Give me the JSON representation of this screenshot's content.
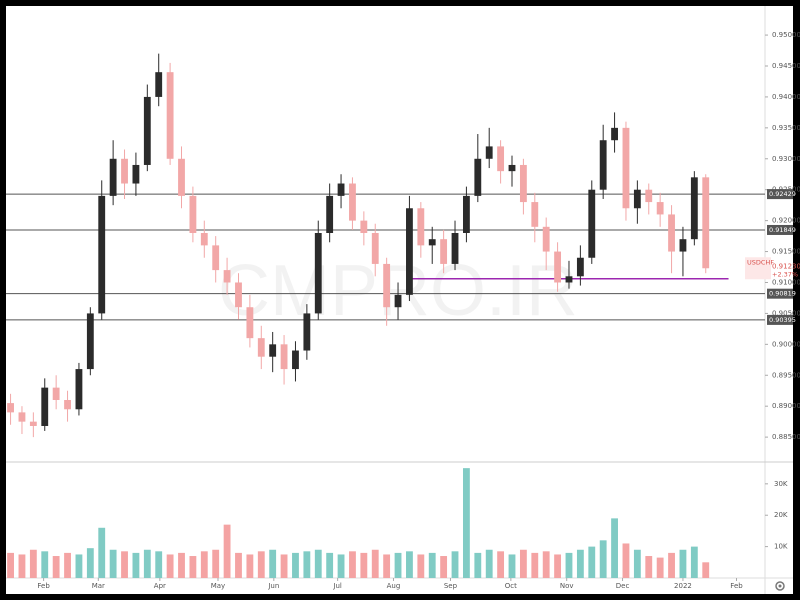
{
  "chart_data": {
    "type": "candlestick",
    "watermark": "CMPRO.IR",
    "symbol": "USDCHF",
    "last_price": {
      "value": 0.9123,
      "label": "0.91230"
    },
    "change": {
      "value": 2.37,
      "label": "+2.37%"
    },
    "up_color": "#2b2b2b",
    "down_color": "#f2a7a7",
    "xlim": [
      -0.4,
      66.2
    ],
    "xticks": [
      {
        "value": 2.9,
        "label": "Feb"
      },
      {
        "value": 7.7,
        "label": "Mar"
      },
      {
        "value": 13.1,
        "label": "Apr"
      },
      {
        "value": 18.2,
        "label": "May"
      },
      {
        "value": 23.1,
        "label": "Jun"
      },
      {
        "value": 28.7,
        "label": "Jul"
      },
      {
        "value": 33.6,
        "label": "Aug"
      },
      {
        "value": 38.6,
        "label": "Sep"
      },
      {
        "value": 43.9,
        "label": "Oct"
      },
      {
        "value": 48.8,
        "label": "Nov"
      },
      {
        "value": 53.7,
        "label": "Dec"
      },
      {
        "value": 59.0,
        "label": "2022"
      },
      {
        "value": 63.7,
        "label": "Feb"
      }
    ],
    "ylim": [
      0.8813,
      0.9547
    ],
    "yticks": [
      {
        "value": 0.885,
        "label": "0.88500"
      },
      {
        "value": 0.89,
        "label": "0.89000"
      },
      {
        "value": 0.895,
        "label": "0.89500"
      },
      {
        "value": 0.9,
        "label": "0.90000"
      },
      {
        "value": 0.905,
        "label": "0.90500"
      },
      {
        "value": 0.91,
        "label": "0.91000"
      },
      {
        "value": 0.915,
        "label": "0.91500"
      },
      {
        "value": 0.92,
        "label": "0.92000"
      },
      {
        "value": 0.925,
        "label": "0.92500"
      },
      {
        "value": 0.93,
        "label": "0.93000"
      },
      {
        "value": 0.935,
        "label": "0.93500"
      },
      {
        "value": 0.94,
        "label": "0.94000"
      },
      {
        "value": 0.945,
        "label": "0.94500"
      },
      {
        "value": 0.95,
        "label": "0.95000"
      }
    ],
    "levels": [
      0.92429,
      0.91849,
      0.90819,
      0.90395
    ],
    "trendline": {
      "y": 0.9106,
      "x": [
        35.1,
        63.0
      ],
      "color": "#9c27b0"
    },
    "open": [
      0.8905,
      0.889,
      0.8875,
      0.8868,
      0.893,
      0.891,
      0.8895,
      0.896,
      0.905,
      0.924,
      0.93,
      0.926,
      0.929,
      0.94,
      0.944,
      0.93,
      0.924,
      0.918,
      0.916,
      0.912,
      0.91,
      0.906,
      0.901,
      0.898,
      0.9,
      0.896,
      0.899,
      0.905,
      0.918,
      0.924,
      0.926,
      0.92,
      0.918,
      0.913,
      0.906,
      0.908,
      0.922,
      0.916,
      0.917,
      0.913,
      0.918,
      0.924,
      0.93,
      0.932,
      0.928,
      0.929,
      0.923,
      0.919,
      0.915,
      0.91,
      0.911,
      0.914,
      0.925,
      0.933,
      0.935,
      0.922,
      0.925,
      0.923,
      0.921,
      0.915,
      0.917,
      0.927
    ],
    "high": [
      0.892,
      0.89,
      0.889,
      0.8945,
      0.895,
      0.8925,
      0.897,
      0.906,
      0.9265,
      0.933,
      0.9315,
      0.931,
      0.942,
      0.947,
      0.9455,
      0.932,
      0.9255,
      0.92,
      0.9175,
      0.914,
      0.9115,
      0.908,
      0.903,
      0.902,
      0.9015,
      0.9005,
      0.9065,
      0.92,
      0.926,
      0.9275,
      0.927,
      0.9215,
      0.9195,
      0.914,
      0.91,
      0.924,
      0.923,
      0.919,
      0.9185,
      0.92,
      0.9255,
      0.934,
      0.935,
      0.933,
      0.9305,
      0.93,
      0.9245,
      0.9205,
      0.9165,
      0.9135,
      0.916,
      0.9265,
      0.9355,
      0.9375,
      0.936,
      0.9265,
      0.926,
      0.9245,
      0.9225,
      0.919,
      0.928,
      0.9275
    ],
    "low": [
      0.887,
      0.8855,
      0.885,
      0.886,
      0.8895,
      0.8875,
      0.8885,
      0.895,
      0.904,
      0.9225,
      0.9235,
      0.924,
      0.928,
      0.9385,
      0.929,
      0.922,
      0.9165,
      0.914,
      0.91,
      0.908,
      0.904,
      0.8995,
      0.896,
      0.8955,
      0.8935,
      0.894,
      0.8975,
      0.904,
      0.9165,
      0.922,
      0.9185,
      0.916,
      0.911,
      0.903,
      0.904,
      0.907,
      0.914,
      0.913,
      0.9115,
      0.912,
      0.9165,
      0.923,
      0.9285,
      0.926,
      0.9255,
      0.921,
      0.9165,
      0.912,
      0.9085,
      0.909,
      0.9095,
      0.913,
      0.9235,
      0.931,
      0.92,
      0.9195,
      0.921,
      0.919,
      0.9115,
      0.911,
      0.916,
      0.9115
    ],
    "close": [
      0.889,
      0.8875,
      0.8868,
      0.893,
      0.891,
      0.8895,
      0.896,
      0.905,
      0.924,
      0.93,
      0.926,
      0.929,
      0.94,
      0.944,
      0.93,
      0.924,
      0.918,
      0.916,
      0.912,
      0.91,
      0.906,
      0.901,
      0.898,
      0.9,
      0.896,
      0.899,
      0.905,
      0.918,
      0.924,
      0.926,
      0.92,
      0.918,
      0.913,
      0.906,
      0.908,
      0.922,
      0.916,
      0.917,
      0.913,
      0.918,
      0.924,
      0.93,
      0.932,
      0.928,
      0.929,
      0.923,
      0.919,
      0.915,
      0.91,
      0.911,
      0.914,
      0.925,
      0.933,
      0.935,
      0.922,
      0.925,
      0.923,
      0.921,
      0.915,
      0.917,
      0.927,
      0.9123
    ],
    "volume": [
      8000,
      7500,
      9000,
      8500,
      7000,
      8000,
      7500,
      9500,
      16000,
      9000,
      8500,
      8000,
      9000,
      8500,
      7500,
      8000,
      7000,
      8500,
      9000,
      17000,
      8000,
      7500,
      8500,
      9000,
      7500,
      8000,
      8500,
      9000,
      8000,
      7500,
      8500,
      8000,
      9000,
      7500,
      8000,
      8500,
      7500,
      8000,
      7000,
      8500,
      35000,
      8000,
      9000,
      8500,
      7500,
      9000,
      8000,
      8500,
      7500,
      8000,
      9000,
      10000,
      12000,
      19000,
      11000,
      9000,
      7000,
      6500,
      8000,
      9000,
      10000,
      5000
    ],
    "vlim": [
      0,
      36000
    ],
    "vticks": [
      {
        "value": 10000,
        "label": "10K"
      },
      {
        "value": 20000,
        "label": "20K"
      },
      {
        "value": 30000,
        "label": "30K"
      }
    ]
  }
}
